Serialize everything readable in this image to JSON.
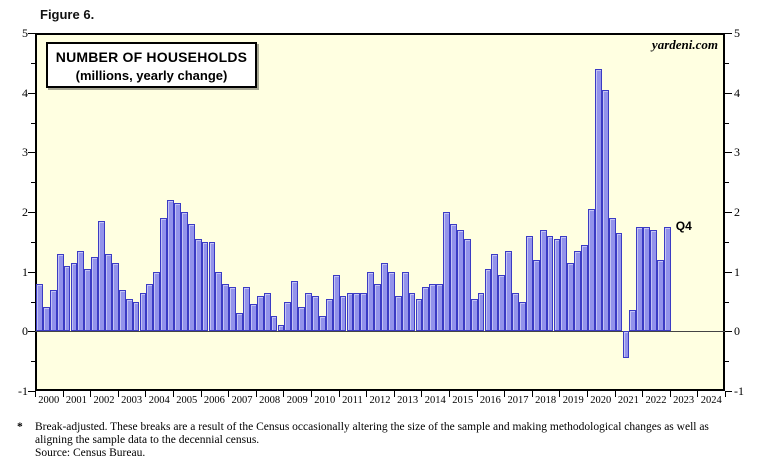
{
  "figure_label": "Figure 6.",
  "title_box": {
    "line1": "NUMBER OF HOUSEHOLDS",
    "line2": "(millions, yearly change)"
  },
  "watermark": "yardeni.com",
  "footnote": {
    "marker": "*",
    "line1": "Break-adjusted. These breaks are a result of the Census occasionally altering the size of the sample and making methodological changes as well as",
    "line2": "aligning the sample data to the decennial census.",
    "source": "Source: Census Bureau."
  },
  "colors": {
    "plot_background": "#FFFFE1",
    "bar_fill": "#9393EB",
    "bar_border": "#3B3BC4",
    "axis": "#000000",
    "zero_line": "#444444"
  },
  "chart_data": {
    "type": "bar",
    "title": "NUMBER OF HOUSEHOLDS (millions, yearly change)",
    "frequency": "quarterly",
    "start_period": "2000Q1",
    "end_period": "2022Q4",
    "last_point_label": "Q4",
    "xlabel": "",
    "ylabel": "millions, yearly change",
    "ylim": [
      -1,
      5
    ],
    "y_major_ticks": [
      -1,
      0,
      1,
      2,
      3,
      4,
      5
    ],
    "y_minor_step": 0.5,
    "x_axis_years": [
      "2000",
      "2001",
      "2002",
      "2003",
      "2004",
      "2005",
      "2006",
      "2007",
      "2008",
      "2009",
      "2010",
      "2011",
      "2012",
      "2013",
      "2014",
      "2015",
      "2016",
      "2017",
      "2018",
      "2019",
      "2020",
      "2021",
      "2022",
      "2023",
      "2024"
    ],
    "grid": "zero-line-only",
    "legend": "none",
    "series": [
      {
        "name": "Number of households, yearly change (millions)",
        "values": [
          0.8,
          0.4,
          0.7,
          1.3,
          1.1,
          1.15,
          1.35,
          1.05,
          1.25,
          1.85,
          1.3,
          1.15,
          0.7,
          0.55,
          0.5,
          0.65,
          0.8,
          1.0,
          1.9,
          2.2,
          2.15,
          2.0,
          1.8,
          1.55,
          1.5,
          1.5,
          1.0,
          0.8,
          0.75,
          0.3,
          0.75,
          0.45,
          0.6,
          0.65,
          0.25,
          0.1,
          0.5,
          0.85,
          0.4,
          0.65,
          0.6,
          0.25,
          0.55,
          0.95,
          0.6,
          0.65,
          0.65,
          0.65,
          1.0,
          0.8,
          1.15,
          1.0,
          0.6,
          1.0,
          0.65,
          0.55,
          0.75,
          0.8,
          0.8,
          2.0,
          1.8,
          1.7,
          1.55,
          0.55,
          0.65,
          1.05,
          1.3,
          0.95,
          1.35,
          0.65,
          0.5,
          1.6,
          1.2,
          1.7,
          1.6,
          1.55,
          1.6,
          1.15,
          1.35,
          1.45,
          2.05,
          4.4,
          4.05,
          1.9,
          1.65,
          -0.45,
          0.35,
          1.75,
          1.75,
          1.7,
          1.2,
          1.75
        ]
      }
    ]
  }
}
